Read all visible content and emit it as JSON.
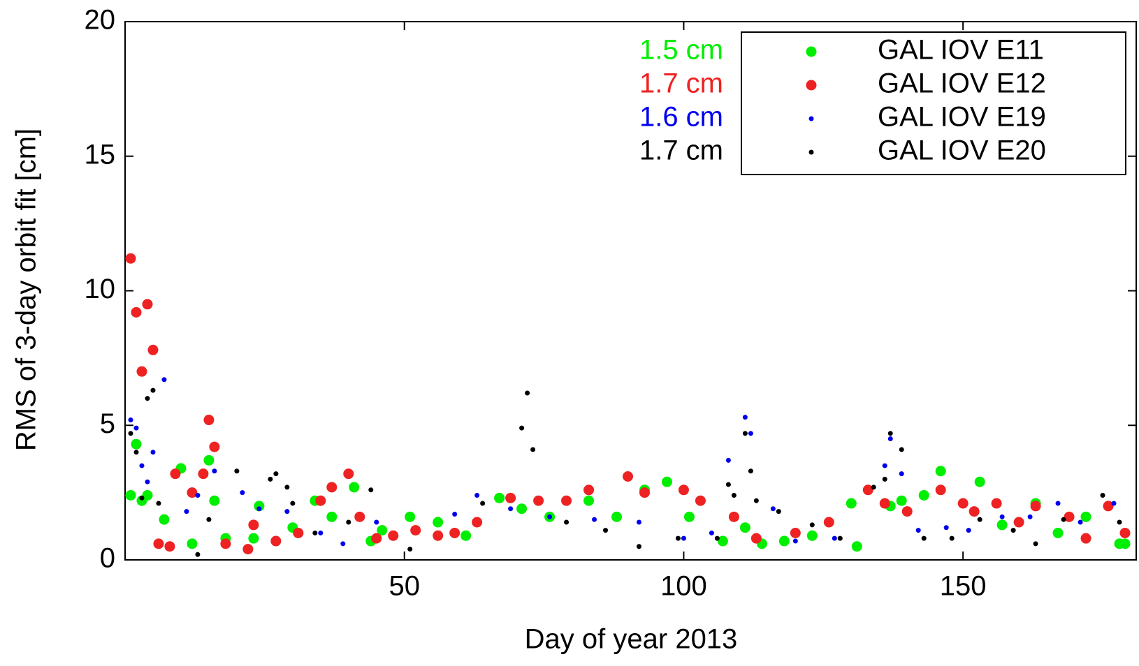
{
  "chart_data": {
    "type": "scatter",
    "x_label": "Day of year 2013",
    "y_label": "RMS of 3-day orbit fit [cm]",
    "xlim": [
      0,
      181
    ],
    "xticks": [
      50,
      100,
      150
    ],
    "ylim": [
      0,
      20
    ],
    "yticks": [
      0,
      5,
      10,
      15,
      20
    ],
    "legend": "upper right",
    "series": [
      {
        "name": "GAL IOV E11",
        "color": "#00ee00",
        "marker": "large",
        "label": "1.5 cm",
        "x": [
          1,
          2,
          3,
          4,
          7,
          10,
          12,
          15,
          16,
          18,
          23,
          24,
          30,
          34,
          37,
          41,
          44,
          46,
          51,
          56,
          61,
          67,
          71,
          76,
          83,
          88,
          93,
          97,
          101,
          107,
          111,
          114,
          118,
          123,
          130,
          131,
          137,
          139,
          143,
          146,
          153,
          157,
          163,
          167,
          172,
          178,
          179
        ],
        "values": [
          2.4,
          4.3,
          2.2,
          2.4,
          1.5,
          3.4,
          0.6,
          3.7,
          2.2,
          0.8,
          0.8,
          2.0,
          1.2,
          2.2,
          1.6,
          2.7,
          0.7,
          1.1,
          1.6,
          1.4,
          0.9,
          2.3,
          1.9,
          1.6,
          2.2,
          1.6,
          2.6,
          2.9,
          1.6,
          0.7,
          1.2,
          0.6,
          0.7,
          0.9,
          2.1,
          0.5,
          2.0,
          2.2,
          2.4,
          3.3,
          2.9,
          1.3,
          2.1,
          1.0,
          1.6,
          0.6,
          0.6
        ]
      },
      {
        "name": "GAL IOV E12",
        "color": "#ee2222",
        "marker": "large",
        "label": "1.7 cm",
        "x": [
          1,
          2,
          3,
          4,
          5,
          6,
          8,
          9,
          12,
          14,
          15,
          16,
          18,
          22,
          23,
          27,
          31,
          35,
          37,
          40,
          42,
          45,
          48,
          52,
          56,
          59,
          63,
          69,
          74,
          79,
          83,
          90,
          93,
          100,
          103,
          109,
          113,
          120,
          126,
          133,
          136,
          140,
          146,
          150,
          152,
          156,
          160,
          163,
          169,
          172,
          176,
          179
        ],
        "values": [
          11.2,
          9.2,
          7.0,
          9.5,
          7.8,
          0.6,
          0.5,
          3.2,
          2.5,
          3.2,
          5.2,
          4.2,
          0.6,
          0.4,
          1.3,
          0.7,
          1.0,
          2.2,
          2.7,
          3.2,
          1.6,
          0.8,
          0.9,
          1.1,
          0.9,
          1.0,
          1.4,
          2.3,
          2.2,
          2.2,
          2.6,
          3.1,
          2.5,
          2.6,
          2.2,
          1.6,
          0.8,
          1.0,
          1.4,
          2.6,
          2.1,
          1.8,
          2.6,
          2.1,
          1.8,
          2.1,
          1.4,
          2.0,
          1.6,
          0.8,
          2.0,
          1.0
        ]
      },
      {
        "name": "GAL IOV E19",
        "color": "#0000ee",
        "marker": "small",
        "label": "1.6 cm",
        "x": [
          1,
          2,
          3,
          4,
          5,
          7,
          11,
          13,
          16,
          21,
          24,
          29,
          35,
          39,
          45,
          59,
          63,
          69,
          76,
          84,
          92,
          100,
          105,
          108,
          111,
          112,
          116,
          120,
          127,
          136,
          137,
          139,
          142,
          147,
          151,
          157,
          162,
          167,
          171,
          177
        ],
        "values": [
          5.2,
          4.9,
          3.5,
          2.9,
          4.0,
          6.7,
          1.8,
          2.4,
          3.3,
          2.5,
          1.9,
          1.8,
          1.0,
          0.6,
          1.4,
          1.7,
          2.4,
          1.9,
          1.6,
          1.5,
          1.4,
          0.8,
          1.0,
          3.7,
          5.3,
          4.7,
          1.9,
          0.7,
          0.8,
          3.5,
          4.5,
          3.2,
          1.1,
          1.2,
          1.1,
          1.6,
          1.6,
          2.1,
          1.4,
          2.1
        ]
      },
      {
        "name": "GAL IOV E20",
        "color": "#000000",
        "marker": "small",
        "label": "1.7 cm",
        "x": [
          1,
          2,
          3,
          4,
          5,
          6,
          13,
          15,
          20,
          26,
          27,
          29,
          30,
          34,
          40,
          44,
          51,
          64,
          71,
          72,
          73,
          79,
          86,
          92,
          99,
          106,
          108,
          109,
          111,
          112,
          113,
          117,
          123,
          128,
          134,
          136,
          137,
          139,
          143,
          148,
          153,
          159,
          163,
          168,
          175,
          178
        ],
        "values": [
          4.7,
          4.0,
          2.3,
          6.0,
          6.3,
          2.1,
          0.2,
          1.5,
          3.3,
          3.0,
          3.2,
          2.7,
          2.1,
          1.0,
          1.4,
          2.6,
          0.4,
          2.1,
          4.9,
          6.2,
          4.1,
          1.4,
          1.1,
          0.5,
          0.8,
          0.8,
          2.8,
          2.4,
          4.7,
          3.3,
          2.2,
          1.8,
          1.3,
          0.8,
          2.7,
          3.0,
          4.7,
          4.1,
          0.8,
          0.8,
          1.5,
          1.1,
          0.6,
          1.5,
          2.4,
          1.4
        ]
      }
    ]
  }
}
